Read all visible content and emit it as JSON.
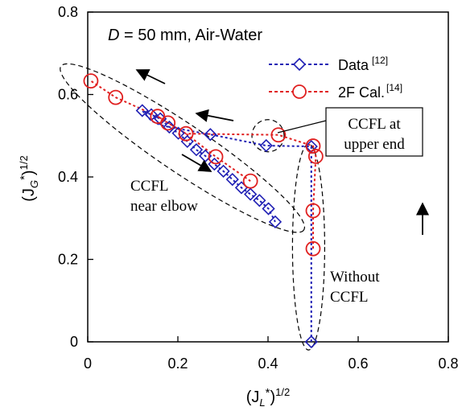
{
  "chart_data": {
    "type": "scatter",
    "title_prefix": "D",
    "title_rest": " = 50 mm, Air-Water",
    "xlabel": {
      "main": "(J",
      "sub": "L",
      "sup_star": "*",
      "close": ")",
      "exp": "1/2"
    },
    "ylabel": {
      "main": "(J",
      "sub": "G",
      "sup_star": "*",
      "close": ")",
      "exp": "1/2"
    },
    "xlim": [
      0,
      0.8
    ],
    "ylim": [
      0,
      0.8
    ],
    "xticks": [
      "0",
      "0.2",
      "0.4",
      "0.6",
      "0.8"
    ],
    "yticks": [
      "0",
      "0.2",
      "0.4",
      "0.6",
      "0.8"
    ],
    "grid": false,
    "legend_position": "top-right",
    "series": [
      {
        "name": "Data",
        "ref": "[12]",
        "color": "#1f1fb4",
        "marker": "diamond",
        "line": "dotted",
        "points": [
          [
            0.121,
            0.561
          ],
          [
            0.141,
            0.551
          ],
          [
            0.161,
            0.541
          ],
          [
            0.181,
            0.521
          ],
          [
            0.201,
            0.506
          ],
          [
            0.221,
            0.486
          ],
          [
            0.241,
            0.466
          ],
          [
            0.272,
            0.503
          ],
          [
            0.261,
            0.451
          ],
          [
            0.281,
            0.431
          ],
          [
            0.301,
            0.414
          ],
          [
            0.321,
            0.394
          ],
          [
            0.341,
            0.374
          ],
          [
            0.361,
            0.358
          ],
          [
            0.381,
            0.343
          ],
          [
            0.401,
            0.323
          ],
          [
            0.416,
            0.291
          ],
          [
            0.396,
            0.476
          ],
          [
            0.496,
            0.474
          ],
          [
            0.496,
            0.0
          ]
        ],
        "path_order": [
          [
            0.496,
            0.0
          ],
          [
            0.496,
            0.474
          ],
          [
            0.396,
            0.476
          ],
          [
            0.272,
            0.503
          ],
          [
            0.181,
            0.521
          ],
          [
            0.161,
            0.541
          ],
          [
            0.141,
            0.551
          ],
          [
            0.121,
            0.561
          ],
          [
            0.141,
            0.536
          ],
          [
            0.161,
            0.526
          ],
          [
            0.181,
            0.521
          ],
          [
            0.201,
            0.506
          ],
          [
            0.221,
            0.486
          ],
          [
            0.241,
            0.466
          ],
          [
            0.261,
            0.451
          ],
          [
            0.281,
            0.431
          ],
          [
            0.301,
            0.414
          ],
          [
            0.321,
            0.394
          ],
          [
            0.341,
            0.374
          ],
          [
            0.361,
            0.358
          ],
          [
            0.381,
            0.343
          ],
          [
            0.401,
            0.323
          ],
          [
            0.416,
            0.291
          ]
        ]
      },
      {
        "name": "2F Cal.",
        "ref": "[14]",
        "color": "#e02020",
        "marker": "circle",
        "line": "dotted",
        "points": [
          [
            0.007,
            0.633
          ],
          [
            0.062,
            0.593
          ],
          [
            0.155,
            0.547
          ],
          [
            0.178,
            0.531
          ],
          [
            0.218,
            0.505
          ],
          [
            0.284,
            0.449
          ],
          [
            0.361,
            0.39
          ],
          [
            0.423,
            0.502
          ],
          [
            0.5,
            0.475
          ],
          [
            0.506,
            0.45
          ],
          [
            0.5,
            0.318
          ],
          [
            0.5,
            0.226
          ]
        ],
        "path_order": [
          [
            0.5,
            0.226
          ],
          [
            0.5,
            0.318
          ],
          [
            0.506,
            0.45
          ],
          [
            0.5,
            0.475
          ],
          [
            0.423,
            0.502
          ],
          [
            0.218,
            0.505
          ],
          [
            0.155,
            0.547
          ],
          [
            0.062,
            0.593
          ],
          [
            0.007,
            0.633
          ]
        ],
        "branch_order": [
          [
            0.155,
            0.547
          ],
          [
            0.178,
            0.531
          ],
          [
            0.218,
            0.505
          ],
          [
            0.284,
            0.449
          ],
          [
            0.361,
            0.39
          ]
        ]
      }
    ],
    "annotations": [
      {
        "lines": [
          "CCFL at",
          "upper end"
        ],
        "boxed": true
      },
      {
        "lines": [
          "CCFL",
          "near elbow"
        ],
        "boxed": false
      },
      {
        "lines": [
          "Without",
          "CCFL"
        ],
        "boxed": false
      }
    ]
  }
}
